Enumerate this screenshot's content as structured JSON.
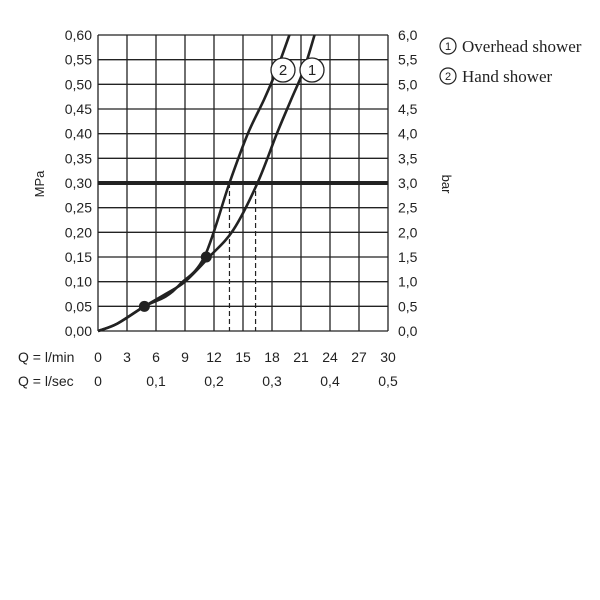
{
  "chart_data": {
    "type": "line",
    "y_left": {
      "label": "MPa",
      "range": [
        0,
        0.6
      ],
      "ticks": [
        "0,00",
        "0,05",
        "0,10",
        "0,15",
        "0,20",
        "0,25",
        "0,30",
        "0,35",
        "0,40",
        "0,45",
        "0,50",
        "0,55",
        "0,60"
      ]
    },
    "y_right": {
      "label": "bar",
      "range": [
        0,
        6
      ],
      "ticks": [
        "0,0",
        "0,5",
        "1,0",
        "1,5",
        "2,0",
        "2,5",
        "3,0",
        "3,5",
        "4,0",
        "4,5",
        "5,0",
        "5,5",
        "6,0"
      ]
    },
    "x": {
      "range": [
        0,
        30
      ],
      "row1_label": "Q = l/min",
      "row1_ticks": [
        {
          "value": 0,
          "label": "0"
        },
        {
          "value": 3,
          "label": "3"
        },
        {
          "value": 6,
          "label": "6"
        },
        {
          "value": 9,
          "label": "9"
        },
        {
          "value": 12,
          "label": "12"
        },
        {
          "value": 15,
          "label": "15"
        },
        {
          "value": 18,
          "label": "18"
        },
        {
          "value": 21,
          "label": "21"
        },
        {
          "value": 24,
          "label": "24"
        },
        {
          "value": 27,
          "label": "27"
        },
        {
          "value": 30,
          "label": "30"
        }
      ],
      "row2_label": "Q = l/sec",
      "row2_ticks": [
        {
          "value": 0,
          "label": "0"
        },
        {
          "value": 6,
          "label": "0,1"
        },
        {
          "value": 12,
          "label": "0,2"
        },
        {
          "value": 18,
          "label": "0,3"
        },
        {
          "value": 24,
          "label": "0,4"
        },
        {
          "value": 30,
          "label": "0,5"
        }
      ]
    },
    "reference_line": {
      "y": 0.3
    },
    "series": [
      {
        "name": "Overhead shower",
        "marker": "1",
        "points": [
          [
            0,
            0
          ],
          [
            2,
            0.015
          ],
          [
            4.8,
            0.05
          ],
          [
            7,
            0.075
          ],
          [
            9,
            0.1
          ],
          [
            11.5,
            0.15
          ],
          [
            14,
            0.205
          ],
          [
            16.5,
            0.3
          ],
          [
            18.5,
            0.4
          ],
          [
            20,
            0.47
          ],
          [
            21.3,
            0.53
          ],
          [
            22.4,
            0.6
          ]
        ],
        "dropline_x": 16.3
      },
      {
        "name": "Hand shower",
        "marker": "2",
        "points": [
          [
            0,
            0
          ],
          [
            2,
            0.015
          ],
          [
            4.8,
            0.05
          ],
          [
            7,
            0.07
          ],
          [
            8.5,
            0.095
          ],
          [
            11,
            0.15
          ],
          [
            13.6,
            0.3
          ],
          [
            15.5,
            0.4
          ],
          [
            17.2,
            0.47
          ],
          [
            18.5,
            0.53
          ],
          [
            19.8,
            0.6
          ]
        ],
        "dropline_x": 13.6
      }
    ],
    "points_marked": [
      [
        4.8,
        0.05
      ],
      [
        11.2,
        0.15
      ]
    ],
    "legend": [
      {
        "symbol": "1",
        "label": "Overhead shower"
      },
      {
        "symbol": "2",
        "label": "Hand shower"
      }
    ],
    "grid": true
  }
}
